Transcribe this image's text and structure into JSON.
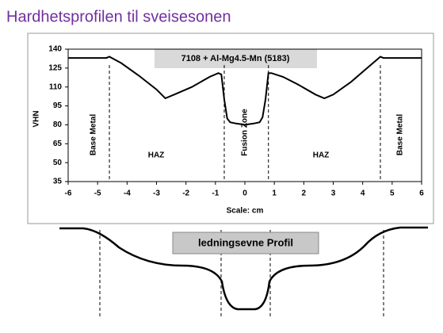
{
  "chart_data": {
    "type": "line",
    "page_title": "Hardhetsprofilen til sveisesonen",
    "title": "7108 + Al-Mg4.5-Mn (5183)",
    "xlabel": "Scale: cm",
    "ylabel": "VHN",
    "x": [
      -6,
      -4.7,
      -4.6,
      -4.2,
      -3.6,
      -3,
      -2.7,
      -2.4,
      -1.8,
      -1.2,
      -0.9,
      -0.8,
      -0.7,
      -0.6,
      -0.5,
      -0.3,
      0,
      0.3,
      0.5,
      0.6,
      0.7,
      0.8,
      0.9,
      1.3,
      1.8,
      2.4,
      2.7,
      3,
      3.6,
      4.2,
      4.6,
      4.7,
      6
    ],
    "values": [
      133,
      133,
      134,
      129,
      119,
      108,
      101,
      104,
      110,
      118,
      121,
      120,
      100,
      85,
      82,
      81,
      80,
      81,
      82,
      86,
      100,
      121,
      121,
      118,
      112,
      104,
      101,
      104,
      114,
      126,
      134,
      133,
      133
    ],
    "color": "#000000",
    "xlim": [
      -6,
      6
    ],
    "xticks": [
      -6,
      -5,
      -4,
      -3,
      -2,
      -1,
      0,
      1,
      2,
      3,
      4,
      5,
      6
    ],
    "ylim": [
      35,
      140
    ],
    "yticks": [
      35,
      50,
      65,
      80,
      95,
      110,
      125,
      140
    ],
    "grid": false,
    "vlines": [
      -4.6,
      -0.7,
      0.8,
      4.6
    ],
    "annotations": [
      "Base Metal",
      "HAZ",
      "Fusion Zone",
      "HAZ",
      "Base Metal"
    ],
    "profile_label": "ledningsevne Profil"
  }
}
